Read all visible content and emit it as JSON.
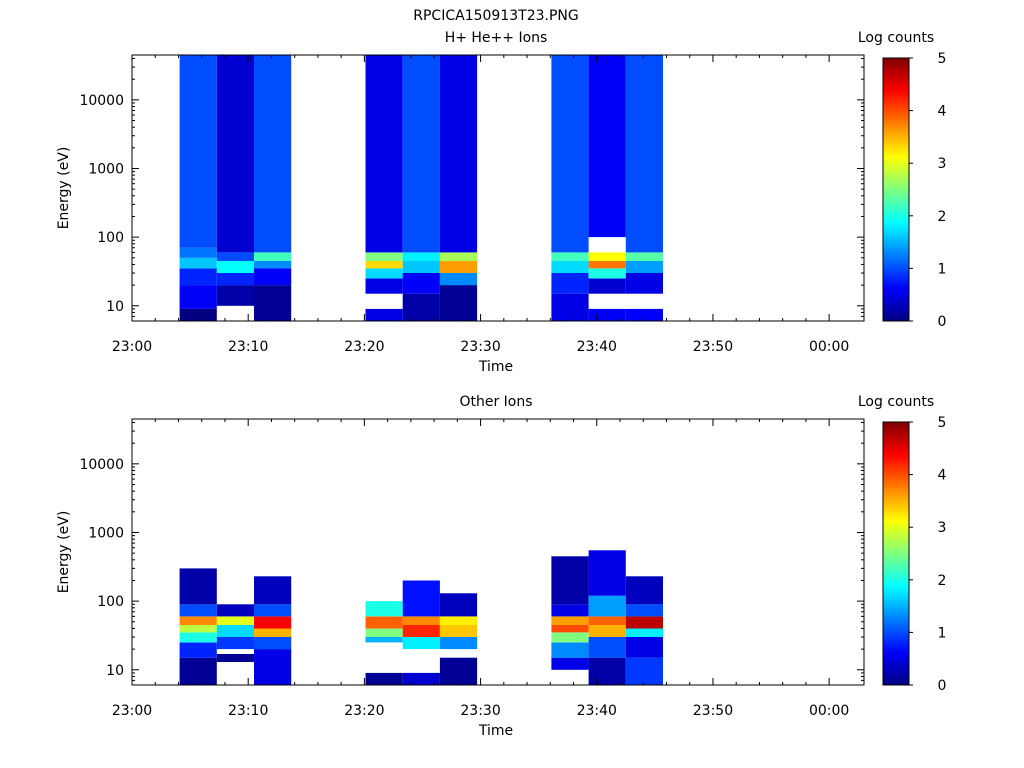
{
  "figure_title": "RPCICA150913T23.PNG",
  "chart_data": [
    {
      "type": "heatmap",
      "title": "H+ He++ Ions",
      "xlabel": "Time",
      "ylabel": "Energy (eV)",
      "x_ticks": [
        "23:00",
        "23:10",
        "23:20",
        "23:30",
        "23:40",
        "23:50",
        "00:00"
      ],
      "xlim_minutes": [
        0,
        63
      ],
      "y_scale": "log",
      "y_ticks": [
        "10",
        "100",
        "1000",
        "10000"
      ],
      "ylim": [
        6,
        45000
      ],
      "colorbar": {
        "label": "Log counts",
        "range": [
          0,
          5
        ],
        "ticks": [
          "0",
          "1",
          "2",
          "3",
          "4",
          "5"
        ]
      },
      "scans": [
        {
          "start_minute": 4.1,
          "end_minute": 7.3,
          "counts_by_energy": [
            {
              "energy_range": [
                6,
                9
              ],
              "log_counts": 0.0
            },
            {
              "energy_range": [
                9,
                20
              ],
              "log_counts": 0.6
            },
            {
              "energy_range": [
                20,
                35
              ],
              "log_counts": 0.8
            },
            {
              "energy_range": [
                35,
                50
              ],
              "log_counts": 1.6
            },
            {
              "energy_range": [
                50,
                70
              ],
              "log_counts": 1.2
            },
            {
              "energy_range": [
                70,
                45000
              ],
              "log_counts": 1.0
            }
          ]
        },
        {
          "start_minute": 7.3,
          "end_minute": 10.5,
          "counts_by_energy": [
            {
              "energy_range": [
                10,
                20
              ],
              "log_counts": 0.2
            },
            {
              "energy_range": [
                20,
                30
              ],
              "log_counts": 0.8
            },
            {
              "energy_range": [
                30,
                45
              ],
              "log_counts": 1.9
            },
            {
              "energy_range": [
                45,
                60
              ],
              "log_counts": 1.0
            },
            {
              "energy_range": [
                60,
                45000
              ],
              "log_counts": 0.4
            }
          ]
        },
        {
          "start_minute": 10.5,
          "end_minute": 13.7,
          "counts_by_energy": [
            {
              "energy_range": [
                6,
                20
              ],
              "log_counts": 0.1
            },
            {
              "energy_range": [
                20,
                35
              ],
              "log_counts": 0.6
            },
            {
              "energy_range": [
                35,
                45
              ],
              "log_counts": 1.3
            },
            {
              "energy_range": [
                45,
                60
              ],
              "log_counts": 2.2
            },
            {
              "energy_range": [
                60,
                45000
              ],
              "log_counts": 1.0
            }
          ]
        },
        {
          "start_minute": 20.1,
          "end_minute": 23.3,
          "counts_by_energy": [
            {
              "energy_range": [
                6,
                9
              ],
              "log_counts": 0.5
            },
            {
              "energy_range": [
                15,
                25
              ],
              "log_counts": 0.5
            },
            {
              "energy_range": [
                25,
                35
              ],
              "log_counts": 1.7
            },
            {
              "energy_range": [
                35,
                45
              ],
              "log_counts": 3.3
            },
            {
              "energy_range": [
                45,
                60
              ],
              "log_counts": 2.5
            },
            {
              "energy_range": [
                60,
                45000
              ],
              "log_counts": 0.5
            }
          ]
        },
        {
          "start_minute": 23.3,
          "end_minute": 26.5,
          "counts_by_energy": [
            {
              "energy_range": [
                6,
                15
              ],
              "log_counts": 0.2
            },
            {
              "energy_range": [
                15,
                30
              ],
              "log_counts": 0.6
            },
            {
              "energy_range": [
                30,
                45
              ],
              "log_counts": 1.6
            },
            {
              "energy_range": [
                45,
                60
              ],
              "log_counts": 1.8
            },
            {
              "energy_range": [
                60,
                45000
              ],
              "log_counts": 1.0
            }
          ]
        },
        {
          "start_minute": 26.5,
          "end_minute": 29.7,
          "counts_by_energy": [
            {
              "energy_range": [
                6,
                20
              ],
              "log_counts": 0.1
            },
            {
              "energy_range": [
                20,
                30
              ],
              "log_counts": 1.3
            },
            {
              "energy_range": [
                30,
                45
              ],
              "log_counts": 3.6
            },
            {
              "energy_range": [
                45,
                60
              ],
              "log_counts": 2.7
            },
            {
              "energy_range": [
                60,
                45000
              ],
              "log_counts": 0.5
            }
          ]
        },
        {
          "start_minute": 36.1,
          "end_minute": 39.3,
          "counts_by_energy": [
            {
              "energy_range": [
                6,
                15
              ],
              "log_counts": 0.5
            },
            {
              "energy_range": [
                15,
                30
              ],
              "log_counts": 0.8
            },
            {
              "energy_range": [
                30,
                45
              ],
              "log_counts": 1.7
            },
            {
              "energy_range": [
                45,
                60
              ],
              "log_counts": 2.2
            },
            {
              "energy_range": [
                60,
                45000
              ],
              "log_counts": 1.0
            }
          ]
        },
        {
          "start_minute": 39.3,
          "end_minute": 42.5,
          "counts_by_energy": [
            {
              "energy_range": [
                6,
                9
              ],
              "log_counts": 0.6
            },
            {
              "energy_range": [
                15,
                25
              ],
              "log_counts": 0.4
            },
            {
              "energy_range": [
                25,
                35
              ],
              "log_counts": 2.0
            },
            {
              "energy_range": [
                35,
                45
              ],
              "log_counts": 3.8
            },
            {
              "energy_range": [
                45,
                60
              ],
              "log_counts": 3.1
            },
            {
              "energy_range": [
                100,
                45000
              ],
              "log_counts": 0.6
            }
          ]
        },
        {
          "start_minute": 42.5,
          "end_minute": 45.7,
          "counts_by_energy": [
            {
              "energy_range": [
                6,
                9
              ],
              "log_counts": 0.6
            },
            {
              "energy_range": [
                15,
                30
              ],
              "log_counts": 0.5
            },
            {
              "energy_range": [
                30,
                45
              ],
              "log_counts": 1.4
            },
            {
              "energy_range": [
                45,
                60
              ],
              "log_counts": 2.3
            },
            {
              "energy_range": [
                60,
                45000
              ],
              "log_counts": 1.0
            }
          ]
        }
      ]
    },
    {
      "type": "heatmap",
      "title": "Other Ions",
      "xlabel": "Time",
      "ylabel": "Energy (eV)",
      "x_ticks": [
        "23:00",
        "23:10",
        "23:20",
        "23:30",
        "23:40",
        "23:50",
        "00:00"
      ],
      "xlim_minutes": [
        0,
        63
      ],
      "y_scale": "log",
      "y_ticks": [
        "10",
        "100",
        "1000",
        "10000"
      ],
      "ylim": [
        6,
        45000
      ],
      "colorbar": {
        "label": "Log counts",
        "range": [
          0,
          5
        ],
        "ticks": [
          "0",
          "1",
          "2",
          "3",
          "4",
          "5"
        ]
      },
      "scans": [
        {
          "start_minute": 4.1,
          "end_minute": 7.3,
          "counts_by_energy": [
            {
              "energy_range": [
                6,
                15
              ],
              "log_counts": 0.1
            },
            {
              "energy_range": [
                15,
                25
              ],
              "log_counts": 0.8
            },
            {
              "energy_range": [
                25,
                35
              ],
              "log_counts": 2.0
            },
            {
              "energy_range": [
                35,
                45
              ],
              "log_counts": 2.8
            },
            {
              "energy_range": [
                45,
                60
              ],
              "log_counts": 3.7
            },
            {
              "energy_range": [
                60,
                90
              ],
              "log_counts": 1.0
            },
            {
              "energy_range": [
                90,
                300
              ],
              "log_counts": 0.2
            }
          ]
        },
        {
          "start_minute": 7.3,
          "end_minute": 10.5,
          "counts_by_energy": [
            {
              "energy_range": [
                13,
                17
              ],
              "log_counts": 0.1
            },
            {
              "energy_range": [
                20,
                30
              ],
              "log_counts": 0.9
            },
            {
              "energy_range": [
                30,
                45
              ],
              "log_counts": 1.7
            },
            {
              "energy_range": [
                45,
                60
              ],
              "log_counts": 3.0
            },
            {
              "energy_range": [
                60,
                90
              ],
              "log_counts": 0.3
            }
          ]
        },
        {
          "start_minute": 10.5,
          "end_minute": 13.7,
          "counts_by_energy": [
            {
              "energy_range": [
                6,
                20
              ],
              "log_counts": 0.5
            },
            {
              "energy_range": [
                20,
                30
              ],
              "log_counts": 1.0
            },
            {
              "energy_range": [
                30,
                40
              ],
              "log_counts": 3.5
            },
            {
              "energy_range": [
                40,
                60
              ],
              "log_counts": 4.4
            },
            {
              "energy_range": [
                60,
                90
              ],
              "log_counts": 1.0
            },
            {
              "energy_range": [
                90,
                230
              ],
              "log_counts": 0.3
            }
          ]
        },
        {
          "start_minute": 20.1,
          "end_minute": 23.3,
          "counts_by_energy": [
            {
              "energy_range": [
                6,
                9
              ],
              "log_counts": 0.1
            },
            {
              "energy_range": [
                25,
                30
              ],
              "log_counts": 1.5
            },
            {
              "energy_range": [
                30,
                40
              ],
              "log_counts": 2.5
            },
            {
              "energy_range": [
                40,
                60
              ],
              "log_counts": 3.9
            },
            {
              "energy_range": [
                60,
                100
              ],
              "log_counts": 2.0
            }
          ]
        },
        {
          "start_minute": 23.3,
          "end_minute": 26.5,
          "counts_by_energy": [
            {
              "energy_range": [
                6,
                9
              ],
              "log_counts": 0.4
            },
            {
              "energy_range": [
                20,
                30
              ],
              "log_counts": 1.8
            },
            {
              "energy_range": [
                30,
                45
              ],
              "log_counts": 4.2
            },
            {
              "energy_range": [
                45,
                60
              ],
              "log_counts": 3.7
            },
            {
              "energy_range": [
                60,
                200
              ],
              "log_counts": 0.7
            }
          ]
        },
        {
          "start_minute": 26.5,
          "end_minute": 29.7,
          "counts_by_energy": [
            {
              "energy_range": [
                6,
                15
              ],
              "log_counts": 0.1
            },
            {
              "energy_range": [
                20,
                30
              ],
              "log_counts": 1.3
            },
            {
              "energy_range": [
                30,
                45
              ],
              "log_counts": 3.4
            },
            {
              "energy_range": [
                45,
                60
              ],
              "log_counts": 3.2
            },
            {
              "energy_range": [
                60,
                130
              ],
              "log_counts": 0.3
            }
          ]
        },
        {
          "start_minute": 36.1,
          "end_minute": 39.3,
          "counts_by_energy": [
            {
              "energy_range": [
                10,
                15
              ],
              "log_counts": 0.5
            },
            {
              "energy_range": [
                15,
                25
              ],
              "log_counts": 1.3
            },
            {
              "energy_range": [
                25,
                35
              ],
              "log_counts": 2.5
            },
            {
              "energy_range": [
                35,
                45
              ],
              "log_counts": 4.0
            },
            {
              "energy_range": [
                45,
                60
              ],
              "log_counts": 3.6
            },
            {
              "energy_range": [
                60,
                90
              ],
              "log_counts": 0.5
            },
            {
              "energy_range": [
                90,
                450
              ],
              "log_counts": 0.2
            }
          ]
        },
        {
          "start_minute": 39.3,
          "end_minute": 42.5,
          "counts_by_energy": [
            {
              "energy_range": [
                6,
                15
              ],
              "log_counts": 0.2
            },
            {
              "energy_range": [
                15,
                30
              ],
              "log_counts": 1.0
            },
            {
              "energy_range": [
                30,
                45
              ],
              "log_counts": 3.5
            },
            {
              "energy_range": [
                45,
                60
              ],
              "log_counts": 3.9
            },
            {
              "energy_range": [
                60,
                120
              ],
              "log_counts": 1.4
            },
            {
              "energy_range": [
                120,
                550
              ],
              "log_counts": 0.5
            }
          ]
        },
        {
          "start_minute": 42.5,
          "end_minute": 45.7,
          "counts_by_energy": [
            {
              "energy_range": [
                6,
                15
              ],
              "log_counts": 0.9
            },
            {
              "energy_range": [
                15,
                30
              ],
              "log_counts": 0.5
            },
            {
              "energy_range": [
                30,
                40
              ],
              "log_counts": 1.8
            },
            {
              "energy_range": [
                40,
                60
              ],
              "log_counts": 4.7
            },
            {
              "energy_range": [
                60,
                90
              ],
              "log_counts": 1.0
            },
            {
              "energy_range": [
                90,
                230
              ],
              "log_counts": 0.3
            }
          ]
        }
      ]
    }
  ]
}
